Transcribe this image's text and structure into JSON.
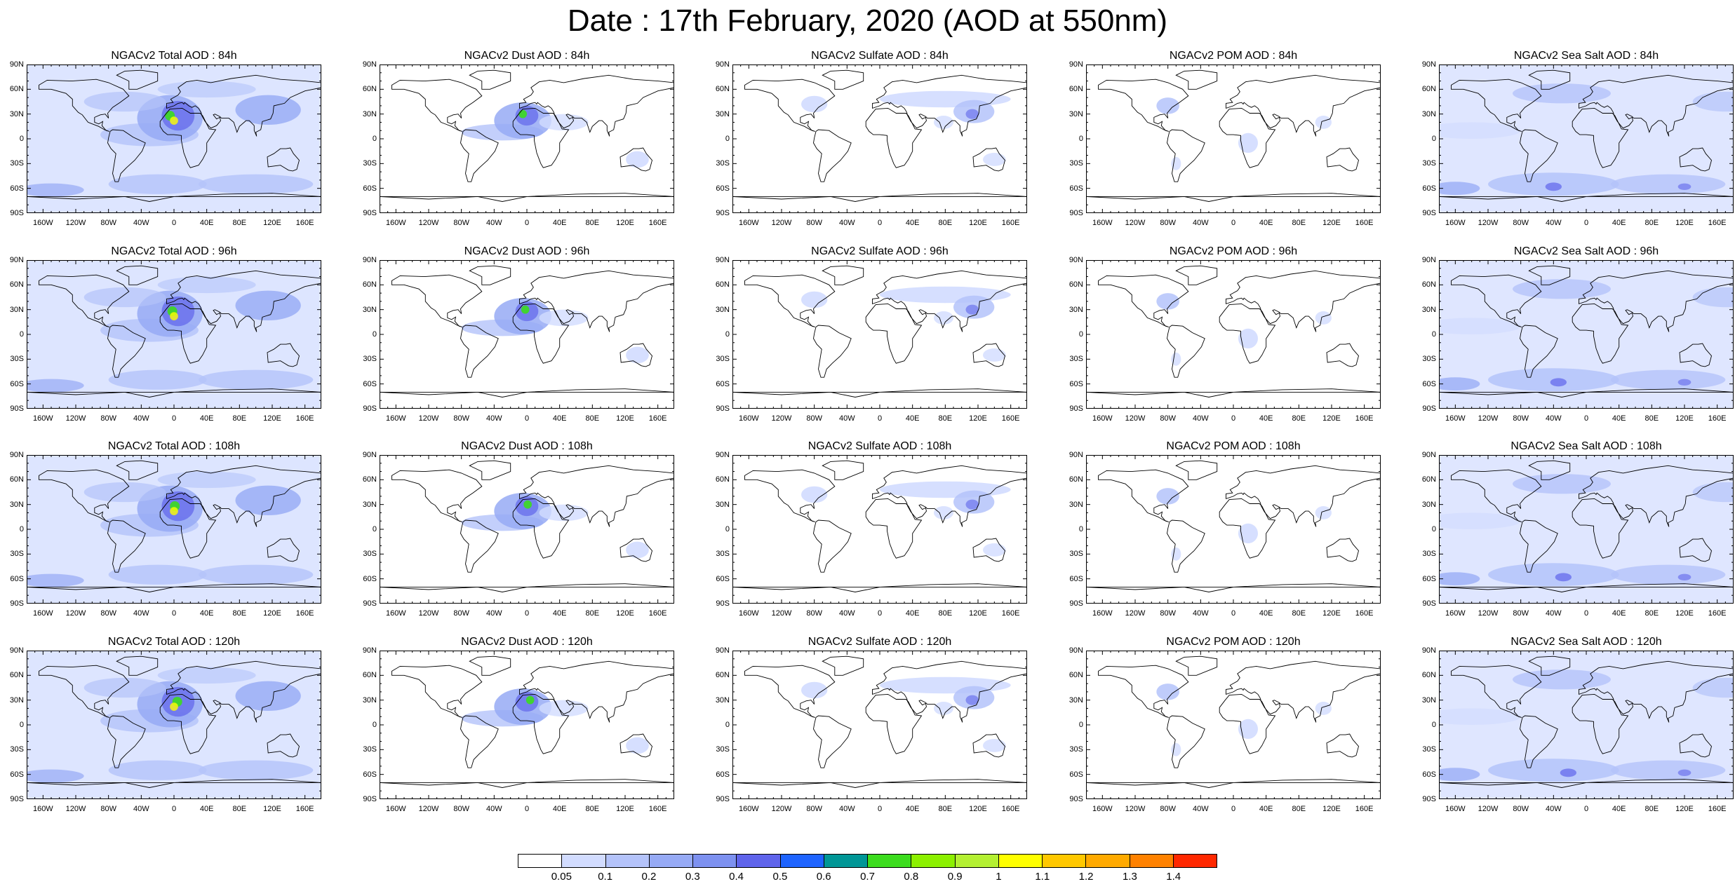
{
  "title": "Date : 17th February, 2020 (AOD at 550nm)",
  "panels": [
    [
      "NGACv2 Total AOD : 84h",
      "NGACv2 Dust AOD : 84h",
      "NGACv2 Sulfate AOD : 84h",
      "NGACv2 POM AOD : 84h",
      "NGACv2 Sea Salt AOD : 84h"
    ],
    [
      "NGACv2 Total AOD : 96h",
      "NGACv2 Dust AOD : 96h",
      "NGACv2 Sulfate AOD : 96h",
      "NGACv2 POM AOD : 96h",
      "NGACv2 Sea Salt AOD : 96h"
    ],
    [
      "NGACv2 Total AOD : 108h",
      "NGACv2 Dust AOD : 108h",
      "NGACv2 Sulfate AOD : 108h",
      "NGACv2 POM AOD : 108h",
      "NGACv2 Sea Salt AOD : 108h"
    ],
    [
      "NGACv2 Total AOD : 120h",
      "NGACv2 Dust AOD : 120h",
      "NGACv2 Sulfate AOD : 120h",
      "NGACv2 POM AOD : 120h",
      "NGACv2 Sea Salt  AOD : 120h"
    ]
  ],
  "axes": {
    "lat_labels": [
      "90N",
      "60N",
      "30N",
      "0",
      "30S",
      "60S",
      "90S"
    ],
    "lon_labels": [
      "160W",
      "120W",
      "80W",
      "40W",
      "0",
      "40E",
      "80E",
      "120E",
      "160E"
    ]
  },
  "colorbar": {
    "labels": [
      "0.05",
      "0.1",
      "0.2",
      "0.3",
      "0.4",
      "0.5",
      "0.6",
      "0.7",
      "0.8",
      "0.9",
      "1",
      "1.1",
      "1.2",
      "1.3",
      "1.4"
    ],
    "colors": [
      "#ffffff",
      "#d2dcff",
      "#b4c3fa",
      "#96aaf5",
      "#7d91f0",
      "#5f64eb",
      "#1e64ff",
      "#009696",
      "#3cdc1e",
      "#8cf000",
      "#b4f032",
      "#ffff00",
      "#ffc800",
      "#ffaa00",
      "#ff8200",
      "#ff2800"
    ]
  }
}
